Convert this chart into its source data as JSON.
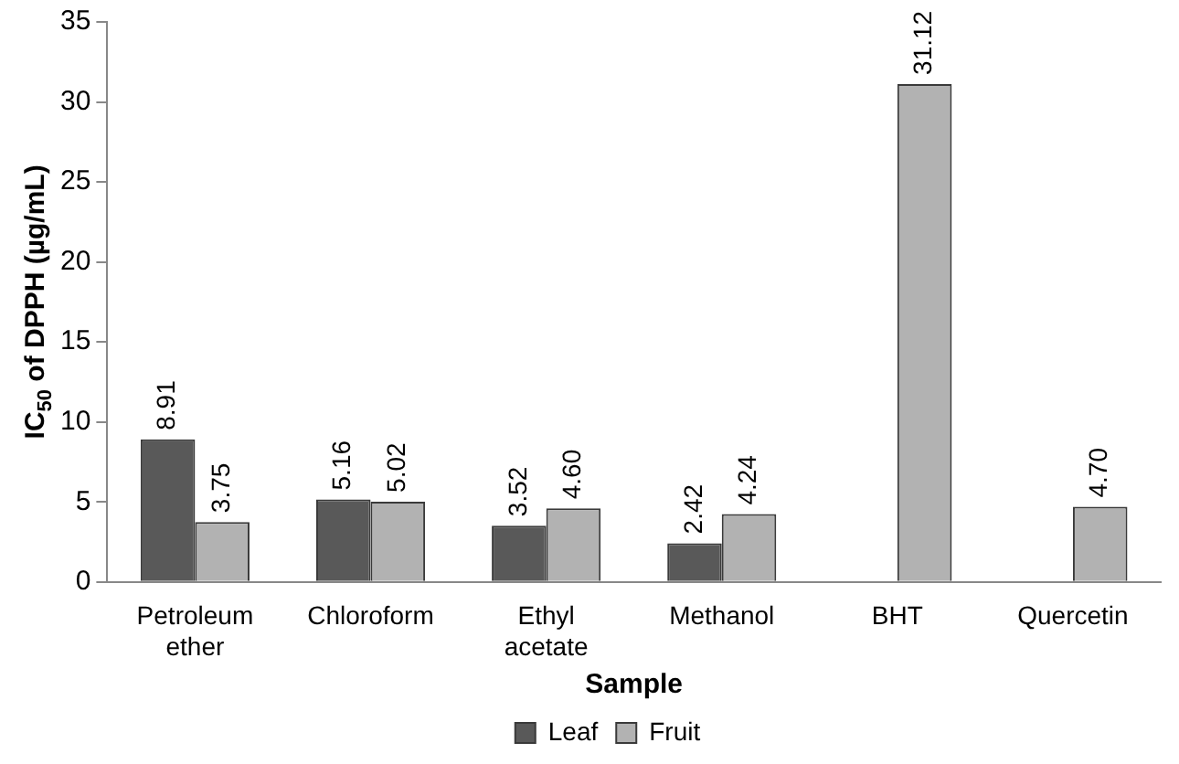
{
  "chart_data": {
    "type": "bar",
    "xlabel": "Sample",
    "ylabel": "IC$_{50}$ of DPPH (µg/mL)",
    "categories": [
      "Petroleum ether",
      "Chloroform",
      "Ethyl acetate",
      "Methanol",
      "BHT",
      "Quercetin"
    ],
    "series": [
      {
        "name": "Leaf",
        "color": "#595959",
        "values": [
          8.91,
          5.16,
          3.52,
          2.42,
          null,
          null
        ],
        "value_labels": [
          "8.91",
          "5.16",
          "3.52",
          "2.42",
          null,
          null
        ]
      },
      {
        "name": "Fruit",
        "color": "#b2b2b2",
        "values": [
          3.75,
          5.02,
          4.6,
          4.24,
          31.12,
          4.7
        ],
        "value_labels": [
          "3.75",
          "5.02",
          "4.60",
          "4.24",
          "31.12",
          "4.70"
        ]
      }
    ],
    "ylim": [
      0,
      35
    ],
    "yticks": [
      0,
      5,
      10,
      15,
      20,
      25,
      30,
      35
    ],
    "grid": false,
    "legend": "bottom"
  }
}
